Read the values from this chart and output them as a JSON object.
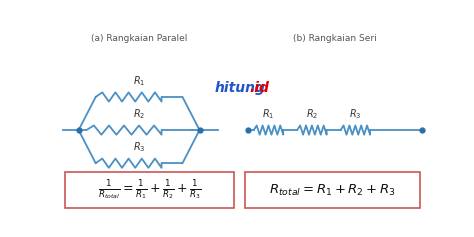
{
  "bg_color": "#ffffff",
  "circuit_color": "#4a90c4",
  "title_left": "(a) Rangkaian Paralel",
  "title_right": "(b) Rangkaian Seri",
  "hitung_blue": "#2255cc",
  "hitung_red": "#dd0000",
  "dot_color": "#2a6faa",
  "box_edge_color": "#cc5555",
  "box_face_color": "#ffffff",
  "text_color": "#333333",
  "title_color": "#555555"
}
